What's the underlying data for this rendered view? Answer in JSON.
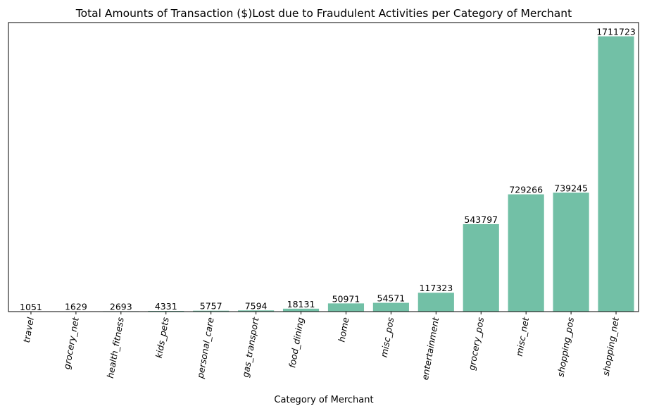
{
  "chart_data": {
    "type": "bar",
    "title": "Total Amounts of Transaction ($)Lost due to Fraudulent Activities per Category of Merchant",
    "xlabel": "Category of Merchant",
    "ylabel": "",
    "categories": [
      "travel",
      "grocery_net",
      "health_fitness",
      "kids_pets",
      "personal_care",
      "gas_transport",
      "food_dining",
      "home",
      "misc_pos",
      "entertainment",
      "grocery_pos",
      "misc_net",
      "shopping_pos",
      "shopping_net"
    ],
    "values": [
      1051,
      1629,
      2693,
      4331,
      5757,
      7594,
      18131,
      50971,
      54571,
      117323,
      543797,
      729266,
      739245,
      1711723
    ],
    "data_labels": [
      "1051",
      "1629",
      "2693",
      "4331",
      "5757",
      "7594",
      "18131",
      "50971",
      "54571",
      "117323",
      "543797",
      "729266",
      "739245",
      "1711723"
    ],
    "ylim": [
      0,
      1797309
    ],
    "x_tick_rotation": 80,
    "grid": false,
    "y_ticks_visible": false,
    "bar_color": "#72c0a6"
  }
}
